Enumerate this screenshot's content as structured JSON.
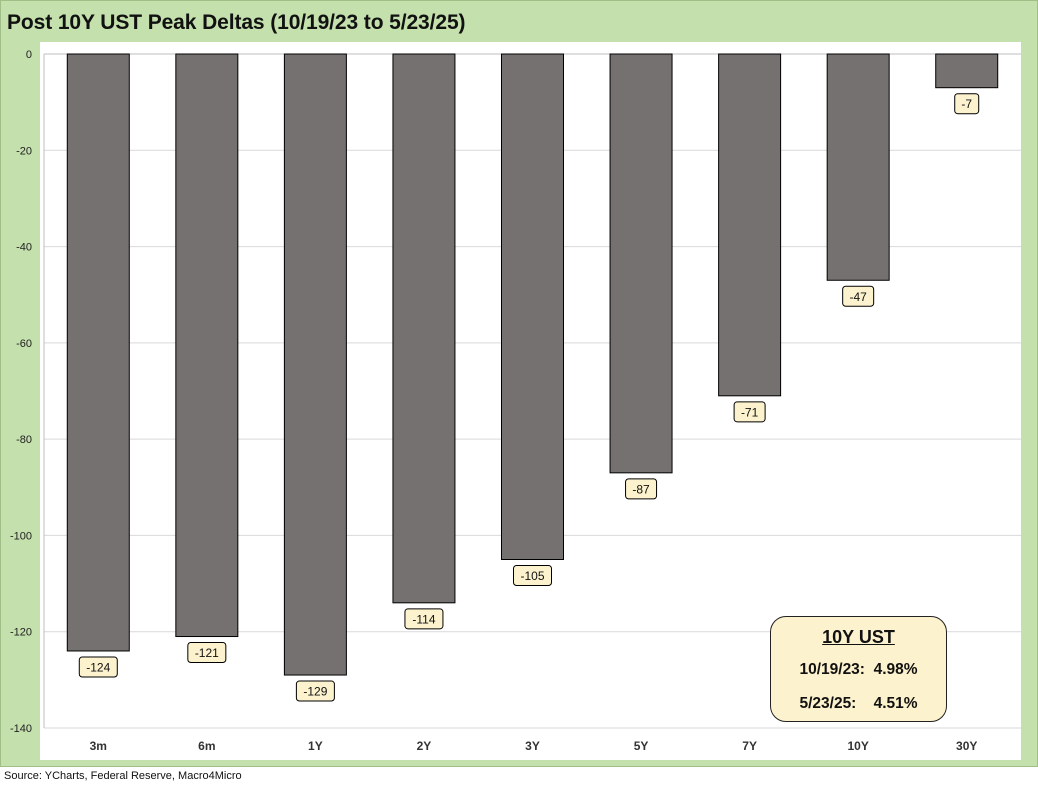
{
  "title": "Post 10Y UST Peak Deltas (10/19/23 to 5/23/25)",
  "source": "Source: YCharts, Federal Reserve, Macro4Micro",
  "info_box": {
    "title": "10Y UST",
    "row1": "10/19/23:  4.98%",
    "row2": "5/23/25:    4.51%"
  },
  "colors": {
    "bar": "#767171",
    "label_bg": "#fcf2cd",
    "frame_bg": "#c4e0ad",
    "gridline": "#d9d9d9"
  },
  "chart_data": {
    "type": "bar",
    "categories": [
      "3m",
      "6m",
      "1Y",
      "2Y",
      "3Y",
      "5Y",
      "7Y",
      "10Y",
      "30Y"
    ],
    "values": [
      -124,
      -121,
      -129,
      -114,
      -105,
      -87,
      -71,
      -47,
      -7
    ],
    "data_labels": [
      "-124",
      "-121",
      "-129",
      "-114",
      "-105",
      "-87",
      "-71",
      "-47",
      "-7"
    ],
    "ylim": [
      -140,
      0
    ],
    "yticks": [
      0,
      -20,
      -40,
      -60,
      -80,
      -100,
      -120,
      -140
    ],
    "ytick_labels": [
      "0",
      "-20",
      "-40",
      "-60",
      "-80",
      "-100",
      "-120",
      "-140"
    ],
    "grid": true,
    "xlabel": "",
    "ylabel": ""
  }
}
